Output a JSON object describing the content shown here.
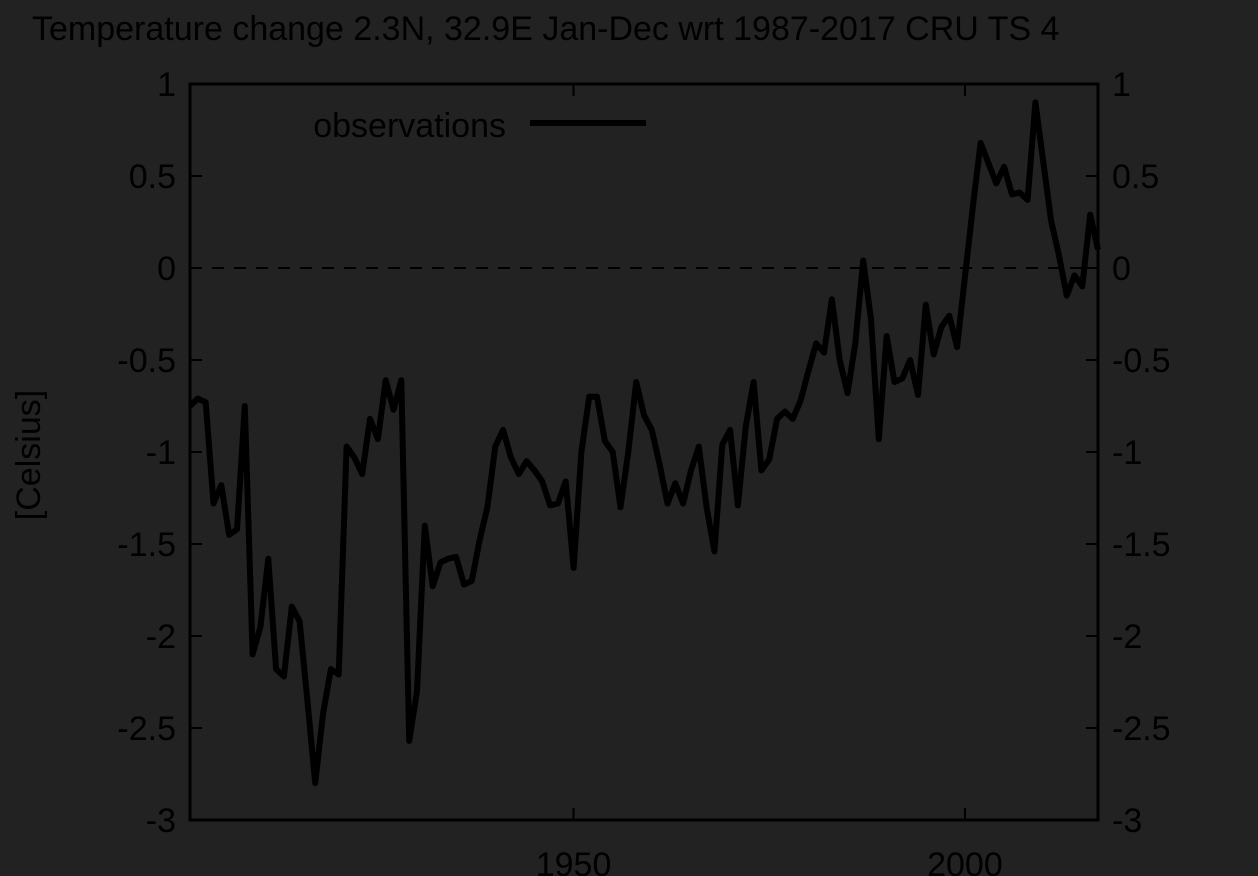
{
  "chart_data": {
    "type": "line",
    "title": "Temperature change 2.3N, 32.9E Jan-Dec wrt 1987-2017 CRU TS 4",
    "ylabel": "[Celsius]",
    "xlabel": "",
    "xlim": [
      1901,
      2017
    ],
    "ylim": [
      -3,
      1
    ],
    "x_ticks": [
      1950,
      2000
    ],
    "y_ticks": [
      -3,
      -2.5,
      -2,
      -1.5,
      -1,
      -0.5,
      0,
      0.5,
      1
    ],
    "zero_line": true,
    "grid": false,
    "legend_position": "top-left",
    "line_color": "#000000",
    "background_color": "#222222",
    "series": [
      {
        "name": "observations",
        "x": [
          1901,
          1902,
          1903,
          1904,
          1905,
          1906,
          1907,
          1908,
          1909,
          1910,
          1911,
          1912,
          1913,
          1914,
          1915,
          1916,
          1917,
          1918,
          1919,
          1920,
          1921,
          1922,
          1923,
          1924,
          1925,
          1926,
          1927,
          1928,
          1929,
          1930,
          1931,
          1932,
          1933,
          1934,
          1935,
          1936,
          1937,
          1938,
          1939,
          1940,
          1941,
          1942,
          1943,
          1944,
          1945,
          1946,
          1947,
          1948,
          1949,
          1950,
          1951,
          1952,
          1953,
          1954,
          1955,
          1956,
          1957,
          1958,
          1959,
          1960,
          1961,
          1962,
          1963,
          1964,
          1965,
          1966,
          1967,
          1968,
          1969,
          1970,
          1971,
          1972,
          1973,
          1974,
          1975,
          1976,
          1977,
          1978,
          1979,
          1980,
          1981,
          1982,
          1983,
          1984,
          1985,
          1986,
          1987,
          1988,
          1989,
          1990,
          1991,
          1992,
          1993,
          1994,
          1995,
          1996,
          1997,
          1998,
          1999,
          2000,
          2001,
          2002,
          2003,
          2004,
          2005,
          2006,
          2007,
          2008,
          2009,
          2010,
          2011,
          2012,
          2013,
          2014,
          2015,
          2016,
          2017
        ],
        "y": [
          -0.75,
          -0.71,
          -0.73,
          -1.28,
          -1.18,
          -1.45,
          -1.42,
          -0.75,
          -2.1,
          -1.95,
          -1.58,
          -2.18,
          -2.22,
          -1.84,
          -1.92,
          -2.35,
          -2.8,
          -2.42,
          -2.18,
          -2.21,
          -0.97,
          -1.03,
          -1.12,
          -0.82,
          -0.93,
          -0.61,
          -0.77,
          -0.61,
          -2.57,
          -2.3,
          -1.4,
          -1.73,
          -1.6,
          -1.58,
          -1.57,
          -1.72,
          -1.7,
          -1.48,
          -1.3,
          -0.97,
          -0.88,
          -1.03,
          -1.12,
          -1.05,
          -1.1,
          -1.16,
          -1.29,
          -1.28,
          -1.16,
          -1.63,
          -1.0,
          -0.7,
          -0.7,
          -0.94,
          -1.0,
          -1.3,
          -1.0,
          -0.62,
          -0.8,
          -0.88,
          -1.07,
          -1.28,
          -1.17,
          -1.28,
          -1.1,
          -0.97,
          -1.3,
          -1.54,
          -0.96,
          -0.88,
          -1.29,
          -0.86,
          -0.62,
          -1.1,
          -1.04,
          -0.82,
          -0.78,
          -0.82,
          -0.72,
          -0.56,
          -0.41,
          -0.46,
          -0.17,
          -0.5,
          -0.68,
          -0.41,
          0.04,
          -0.28,
          -0.93,
          -0.37,
          -0.62,
          -0.6,
          -0.5,
          -0.69,
          -0.2,
          -0.47,
          -0.32,
          -0.26,
          -0.43,
          -0.05,
          0.33,
          0.68,
          0.57,
          0.46,
          0.55,
          0.4,
          0.41,
          0.37,
          0.9,
          0.58,
          0.26,
          0.07,
          -0.15,
          -0.04,
          -0.1,
          0.29,
          0.1
        ]
      }
    ]
  }
}
